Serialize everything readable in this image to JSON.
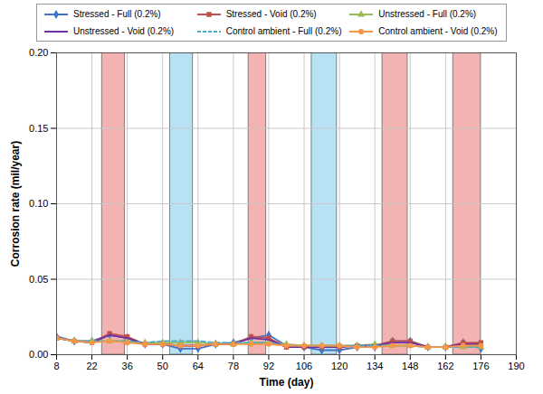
{
  "chart_data": {
    "type": "line",
    "x_label": "Time (day)",
    "y_label": "Corrosion rate (mil/year)",
    "xlim": [
      8,
      190
    ],
    "xticks": [
      8,
      22,
      36,
      50,
      64,
      78,
      92,
      106,
      120,
      134,
      148,
      162,
      176,
      190
    ],
    "ylim": [
      0,
      0.2
    ],
    "yticks": [
      {
        "value": 0,
        "label": "0.00"
      },
      {
        "value": 0.05,
        "label": "0.05"
      },
      {
        "value": 0.1,
        "label": "0.10"
      },
      {
        "value": 0.15,
        "label": "0.15"
      },
      {
        "value": 0.2,
        "label": "0.20"
      }
    ],
    "grid": true,
    "legend": "top",
    "bands": [
      {
        "start": 26,
        "end": 35,
        "color": "#f4b3b3"
      },
      {
        "start": 53,
        "end": 62,
        "color": "#b7e2f4"
      },
      {
        "start": 84,
        "end": 91,
        "color": "#f4b3b3"
      },
      {
        "start": 109,
        "end": 119,
        "color": "#b7e2f4"
      },
      {
        "start": 137,
        "end": 147,
        "color": "#f4b3b3"
      },
      {
        "start": 165,
        "end": 176,
        "color": "#f4b3b3"
      }
    ],
    "x": [
      8,
      15,
      22,
      29,
      36,
      43,
      50,
      57,
      64,
      71,
      78,
      85,
      92,
      99,
      106,
      113,
      120,
      127,
      134,
      141,
      148,
      155,
      162,
      169,
      176
    ],
    "series": [
      {
        "name": "Stressed - Full (0.2%)",
        "color": "#4472c4",
        "marker": "diamond",
        "line_style": "solid",
        "values": [
          0.012,
          0.009,
          0.009,
          0.013,
          0.011,
          0.007,
          0.007,
          0.004,
          0.004,
          0.007,
          0.008,
          0.011,
          0.013,
          0.006,
          0.005,
          0.003,
          0.003,
          0.005,
          0.005,
          0.009,
          0.009,
          0.005,
          0.005,
          0.008,
          0.004
        ]
      },
      {
        "name": "Stressed - Void (0.2%)",
        "color": "#c0504d",
        "marker": "square",
        "line_style": "solid",
        "values": [
          0.011,
          0.009,
          0.008,
          0.014,
          0.012,
          0.007,
          0.007,
          0.006,
          0.006,
          0.007,
          0.007,
          0.012,
          0.011,
          0.005,
          0.005,
          0.005,
          0.005,
          0.006,
          0.006,
          0.009,
          0.009,
          0.005,
          0.005,
          0.008,
          0.008
        ]
      },
      {
        "name": "Unstressed - Full (0.2%)",
        "color": "#9bbb59",
        "marker": "triangle",
        "line_style": "solid",
        "values": [
          0.011,
          0.009,
          0.009,
          0.009,
          0.009,
          0.008,
          0.008,
          0.008,
          0.008,
          0.007,
          0.007,
          0.008,
          0.008,
          0.007,
          0.006,
          0.006,
          0.006,
          0.006,
          0.007,
          0.006,
          0.006,
          0.005,
          0.005,
          0.005,
          0.005
        ]
      },
      {
        "name": "Unstressed - Void (0.2%)",
        "color": "#7030a0",
        "marker": "none",
        "line_style": "solid",
        "values": [
          0.011,
          0.009,
          0.008,
          0.013,
          0.011,
          0.007,
          0.007,
          0.006,
          0.006,
          0.007,
          0.007,
          0.011,
          0.01,
          0.005,
          0.005,
          0.005,
          0.005,
          0.006,
          0.006,
          0.008,
          0.008,
          0.005,
          0.005,
          0.007,
          0.007
        ]
      },
      {
        "name": "Control ambient - Full (0.2%)",
        "color": "#4bacc6",
        "marker": "none",
        "line_style": "dashed",
        "values": [
          0.011,
          0.009,
          0.009,
          0.009,
          0.009,
          0.008,
          0.009,
          0.009,
          0.009,
          0.008,
          0.008,
          0.008,
          0.008,
          0.006,
          0.006,
          0.006,
          0.006,
          0.006,
          0.006,
          0.006,
          0.006,
          0.005,
          0.005,
          0.005,
          0.005
        ]
      },
      {
        "name": "Control ambient - Void (0.2%)",
        "color": "#f79646",
        "marker": "circle",
        "line_style": "solid",
        "values": [
          0.011,
          0.009,
          0.008,
          0.009,
          0.008,
          0.007,
          0.007,
          0.006,
          0.006,
          0.007,
          0.007,
          0.007,
          0.007,
          0.006,
          0.006,
          0.006,
          0.006,
          0.005,
          0.005,
          0.006,
          0.006,
          0.005,
          0.005,
          0.006,
          0.006
        ]
      }
    ]
  }
}
